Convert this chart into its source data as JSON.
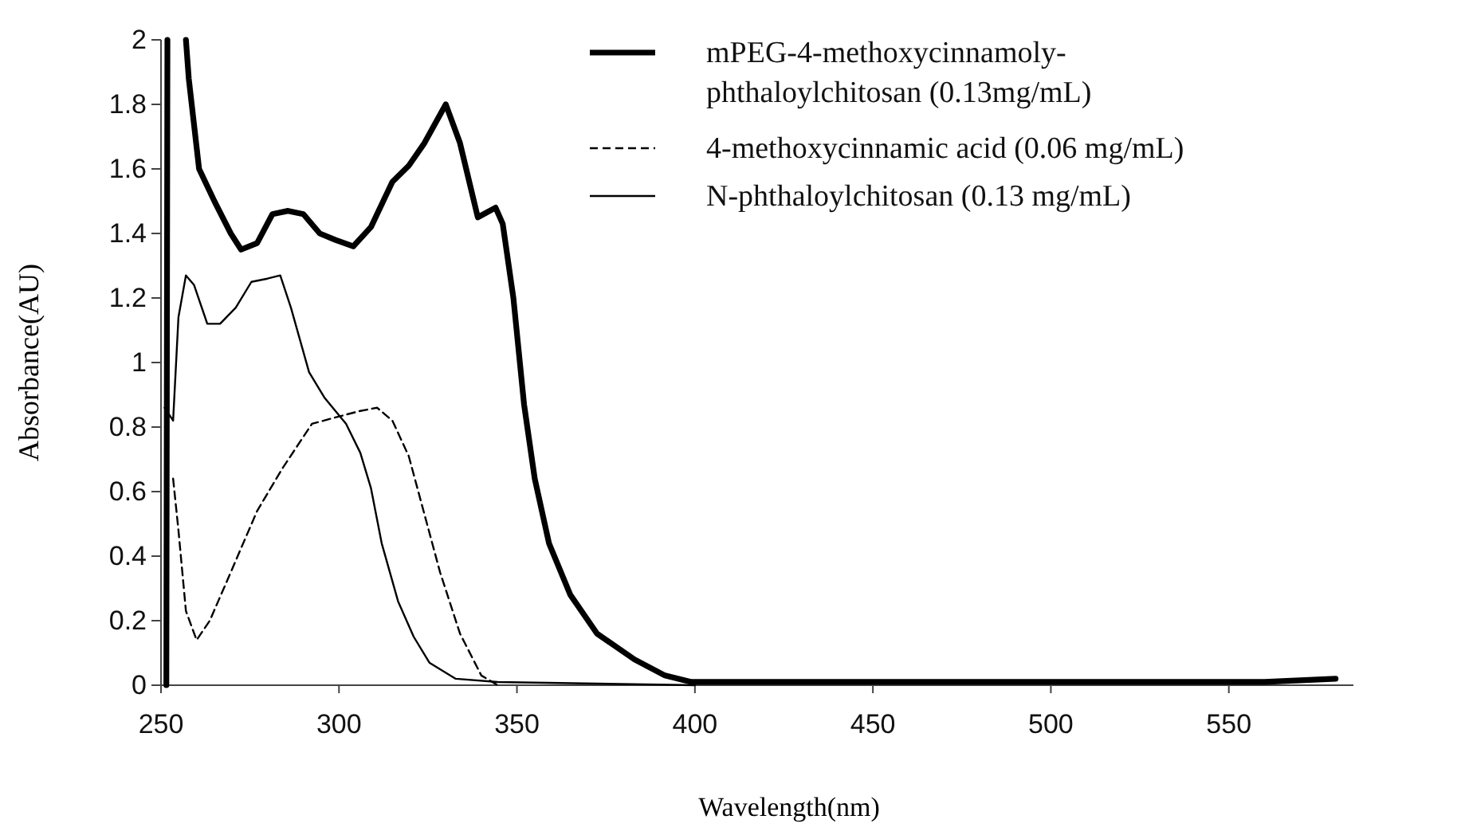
{
  "chart_data": {
    "type": "line",
    "xlabel": "Wavelength(nm)",
    "ylabel": "Absorbance(AU)",
    "xlim": [
      250,
      585
    ],
    "xticks": [
      250,
      300,
      350,
      400,
      450,
      500,
      550
    ],
    "ylim": [
      0,
      2
    ],
    "yticks": [
      0,
      {
        "value": 0.2,
        "label": "0.2"
      },
      {
        "value": 0.4,
        "label": "0.4"
      },
      {
        "value": 0.6,
        "label": "0.6"
      },
      {
        "value": 0.8,
        "label": "0.8"
      },
      1,
      {
        "value": 1.2,
        "label": "1.2"
      },
      {
        "value": 1.4,
        "label": "1.4"
      },
      {
        "value": 1.6,
        "label": "1.6"
      },
      {
        "value": 1.8,
        "label": "1.8"
      },
      2
    ],
    "grid": false,
    "legend": "top right",
    "marker": "none",
    "series": [
      {
        "name": "mPEG-4-methoxycinnamoly-phthaloylchitosan (0.13mg/mL)",
        "color": "#000000",
        "line_style": "solid",
        "x": [
          251.5,
          251.8,
          254,
          257,
          257.8,
          260.7,
          265,
          269.6,
          272.5,
          277,
          281.3,
          285.7,
          290,
          294.6,
          299,
          304,
          309,
          315,
          319.6,
          324,
          330,
          334,
          339,
          344,
          346,
          349,
          352,
          355,
          359,
          365,
          372.5,
          383,
          391.6,
          399,
          420,
          450,
          480,
          510,
          540,
          560,
          580
        ],
        "values": [
          0,
          2,
          null,
          2,
          1.88,
          1.6,
          1.5,
          1.4,
          1.35,
          1.37,
          1.46,
          1.47,
          1.46,
          1.4,
          1.38,
          1.36,
          1.42,
          1.56,
          1.61,
          1.68,
          1.8,
          1.68,
          1.45,
          1.48,
          1.43,
          1.2,
          0.87,
          0.64,
          0.44,
          0.28,
          0.16,
          0.08,
          0.03,
          0.01,
          0.01,
          0.01,
          0.01,
          0.01,
          0.01,
          0.01,
          0.02
        ]
      },
      {
        "name": "4-methoxycinnamic acid (0.06 mg/mL)",
        "color": "#000000",
        "line_style": "dashed",
        "x": [
          253.4,
          254.9,
          257,
          260,
          263.7,
          269.6,
          277,
          284,
          292.4,
          299,
          306,
          310.7,
          315,
          319.6,
          324,
          328.4,
          334,
          340,
          344.6
        ],
        "values": [
          0.64,
          0.48,
          0.23,
          0.14,
          0.2,
          0.35,
          0.54,
          0.67,
          0.81,
          0.83,
          0.85,
          0.86,
          0.82,
          0.71,
          0.53,
          0.35,
          0.16,
          0.03,
          0
        ]
      },
      {
        "name": "N-phthaloylchitosan (0.13 mg/mL)",
        "color": "#000000",
        "line_style": "solid",
        "x": [
          251,
          253.4,
          254.9,
          257,
          259.3,
          263,
          266.6,
          271,
          275.4,
          279.9,
          283.5,
          286.5,
          291.6,
          296,
          302,
          306,
          309,
          312,
          316.6,
          321,
          325.4,
          332.8,
          344.6,
          400
        ],
        "values": [
          0.86,
          0.82,
          1.14,
          1.27,
          1.24,
          1.12,
          1.12,
          1.17,
          1.25,
          1.26,
          1.27,
          1.17,
          0.97,
          0.89,
          0.81,
          0.72,
          0.61,
          0.44,
          0.26,
          0.15,
          0.07,
          0.02,
          0.01,
          0
        ]
      }
    ]
  }
}
